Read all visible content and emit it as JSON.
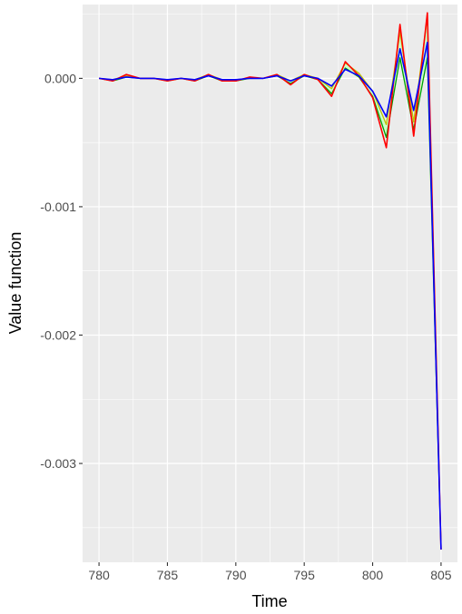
{
  "chart_data": {
    "type": "line",
    "title": "",
    "xlabel": "Time",
    "ylabel": "Value function",
    "xlim": [
      778.8,
      806.2
    ],
    "ylim": [
      -0.00377,
      0.000575
    ],
    "x_ticks": [
      780,
      785,
      790,
      795,
      800,
      805
    ],
    "x_tick_labels": [
      "780",
      "785",
      "790",
      "795",
      "800",
      "805"
    ],
    "y_ticks": [
      0.0,
      -0.001,
      -0.002,
      -0.003
    ],
    "y_tick_labels": [
      "0.000",
      "-0.001",
      "-0.002",
      "-0.003"
    ],
    "grid": true,
    "legend": "none",
    "colors": {
      "panel_background": "#ebebeb",
      "grid": "#ffffff",
      "band_fill": "#ccffcc",
      "band_lower": "#00a000",
      "band_upper": "#c0c000",
      "series_mean": "#0000ff",
      "series_extreme": "#ff0000"
    },
    "x": [
      780,
      781,
      782,
      783,
      784,
      785,
      786,
      787,
      788,
      789,
      790,
      791,
      792,
      793,
      794,
      795,
      796,
      797,
      798,
      799,
      800,
      801,
      802,
      803,
      804,
      805
    ],
    "band": {
      "lower": [
        0.0,
        -2e-05,
        1e-05,
        0.0,
        0.0,
        -2e-05,
        0.0,
        -2e-05,
        2e-05,
        -2e-05,
        -2e-05,
        0.0,
        0.0,
        2e-05,
        -4e-05,
        2e-05,
        -1e-05,
        -0.00012,
        8e-05,
        1e-05,
        -0.00014,
        -0.00046,
        0.00016,
        -0.0004,
        0.00016,
        -0.00367
      ],
      "upper": [
        0.0,
        -1e-05,
        2e-05,
        0.0,
        0.0,
        -1e-05,
        0.0,
        -1e-05,
        3e-05,
        -1e-05,
        -1e-05,
        0.0,
        0.0,
        3e-05,
        -2e-05,
        3e-05,
        0.0,
        -8e-05,
        0.00012,
        4e-05,
        -0.0001,
        -0.00036,
        0.00036,
        -0.00034,
        0.00048,
        -0.00367
      ]
    },
    "series": [
      {
        "values": [
          0.0,
          -1e-05,
          1e-05,
          0.0,
          0.0,
          -1e-05,
          0.0,
          -1e-05,
          2e-05,
          -1e-05,
          -1e-05,
          0.0,
          0.0,
          2e-05,
          -2e-05,
          2e-05,
          0.0,
          -6e-05,
          7e-05,
          2e-05,
          -0.0001,
          -0.0003,
          0.00023,
          -0.00025,
          0.00028,
          -0.00367
        ]
      },
      {
        "values": [
          0.0,
          -2e-05,
          3e-05,
          0.0,
          0.0,
          -2e-05,
          0.0,
          -2e-05,
          3e-05,
          -2e-05,
          -2e-05,
          1e-05,
          0.0,
          3e-05,
          -5e-05,
          3e-05,
          -1e-05,
          -0.00014,
          0.00013,
          2e-05,
          -0.00015,
          -0.00054,
          0.00042,
          -0.00045,
          0.00051,
          -0.00367
        ]
      }
    ]
  }
}
